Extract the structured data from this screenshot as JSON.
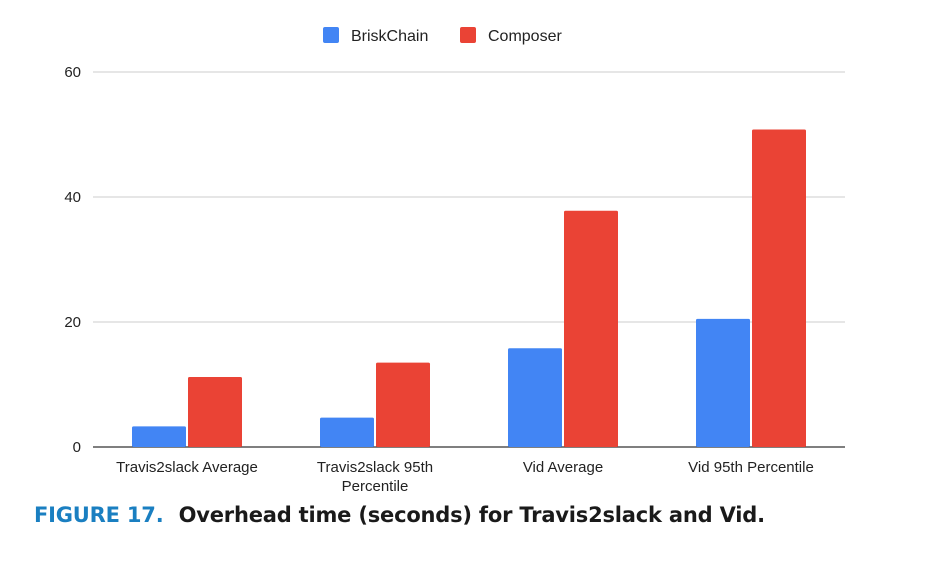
{
  "chart_data": {
    "type": "bar",
    "categories": [
      [
        "Travis2slack Average"
      ],
      [
        "Travis2slack 95th",
        "Percentile"
      ],
      [
        "Vid Average"
      ],
      [
        "Vid 95th Percentile"
      ]
    ],
    "series": [
      {
        "name": "BriskChain",
        "color": "#4285f4",
        "values": [
          3.3,
          4.7,
          15.8,
          20.5
        ]
      },
      {
        "name": "Composer",
        "color": "#ea4335",
        "values": [
          11.2,
          13.5,
          37.8,
          50.8
        ]
      }
    ],
    "yticks": [
      "0",
      "20",
      "40",
      "60"
    ],
    "ylim": [
      0,
      60
    ],
    "grid": true,
    "legend": "top-center",
    "title": "",
    "xlabel": "",
    "ylabel": ""
  },
  "caption": {
    "number": "FIGURE 17.",
    "text": "Overhead time (seconds) for Travis2slack and Vid."
  }
}
